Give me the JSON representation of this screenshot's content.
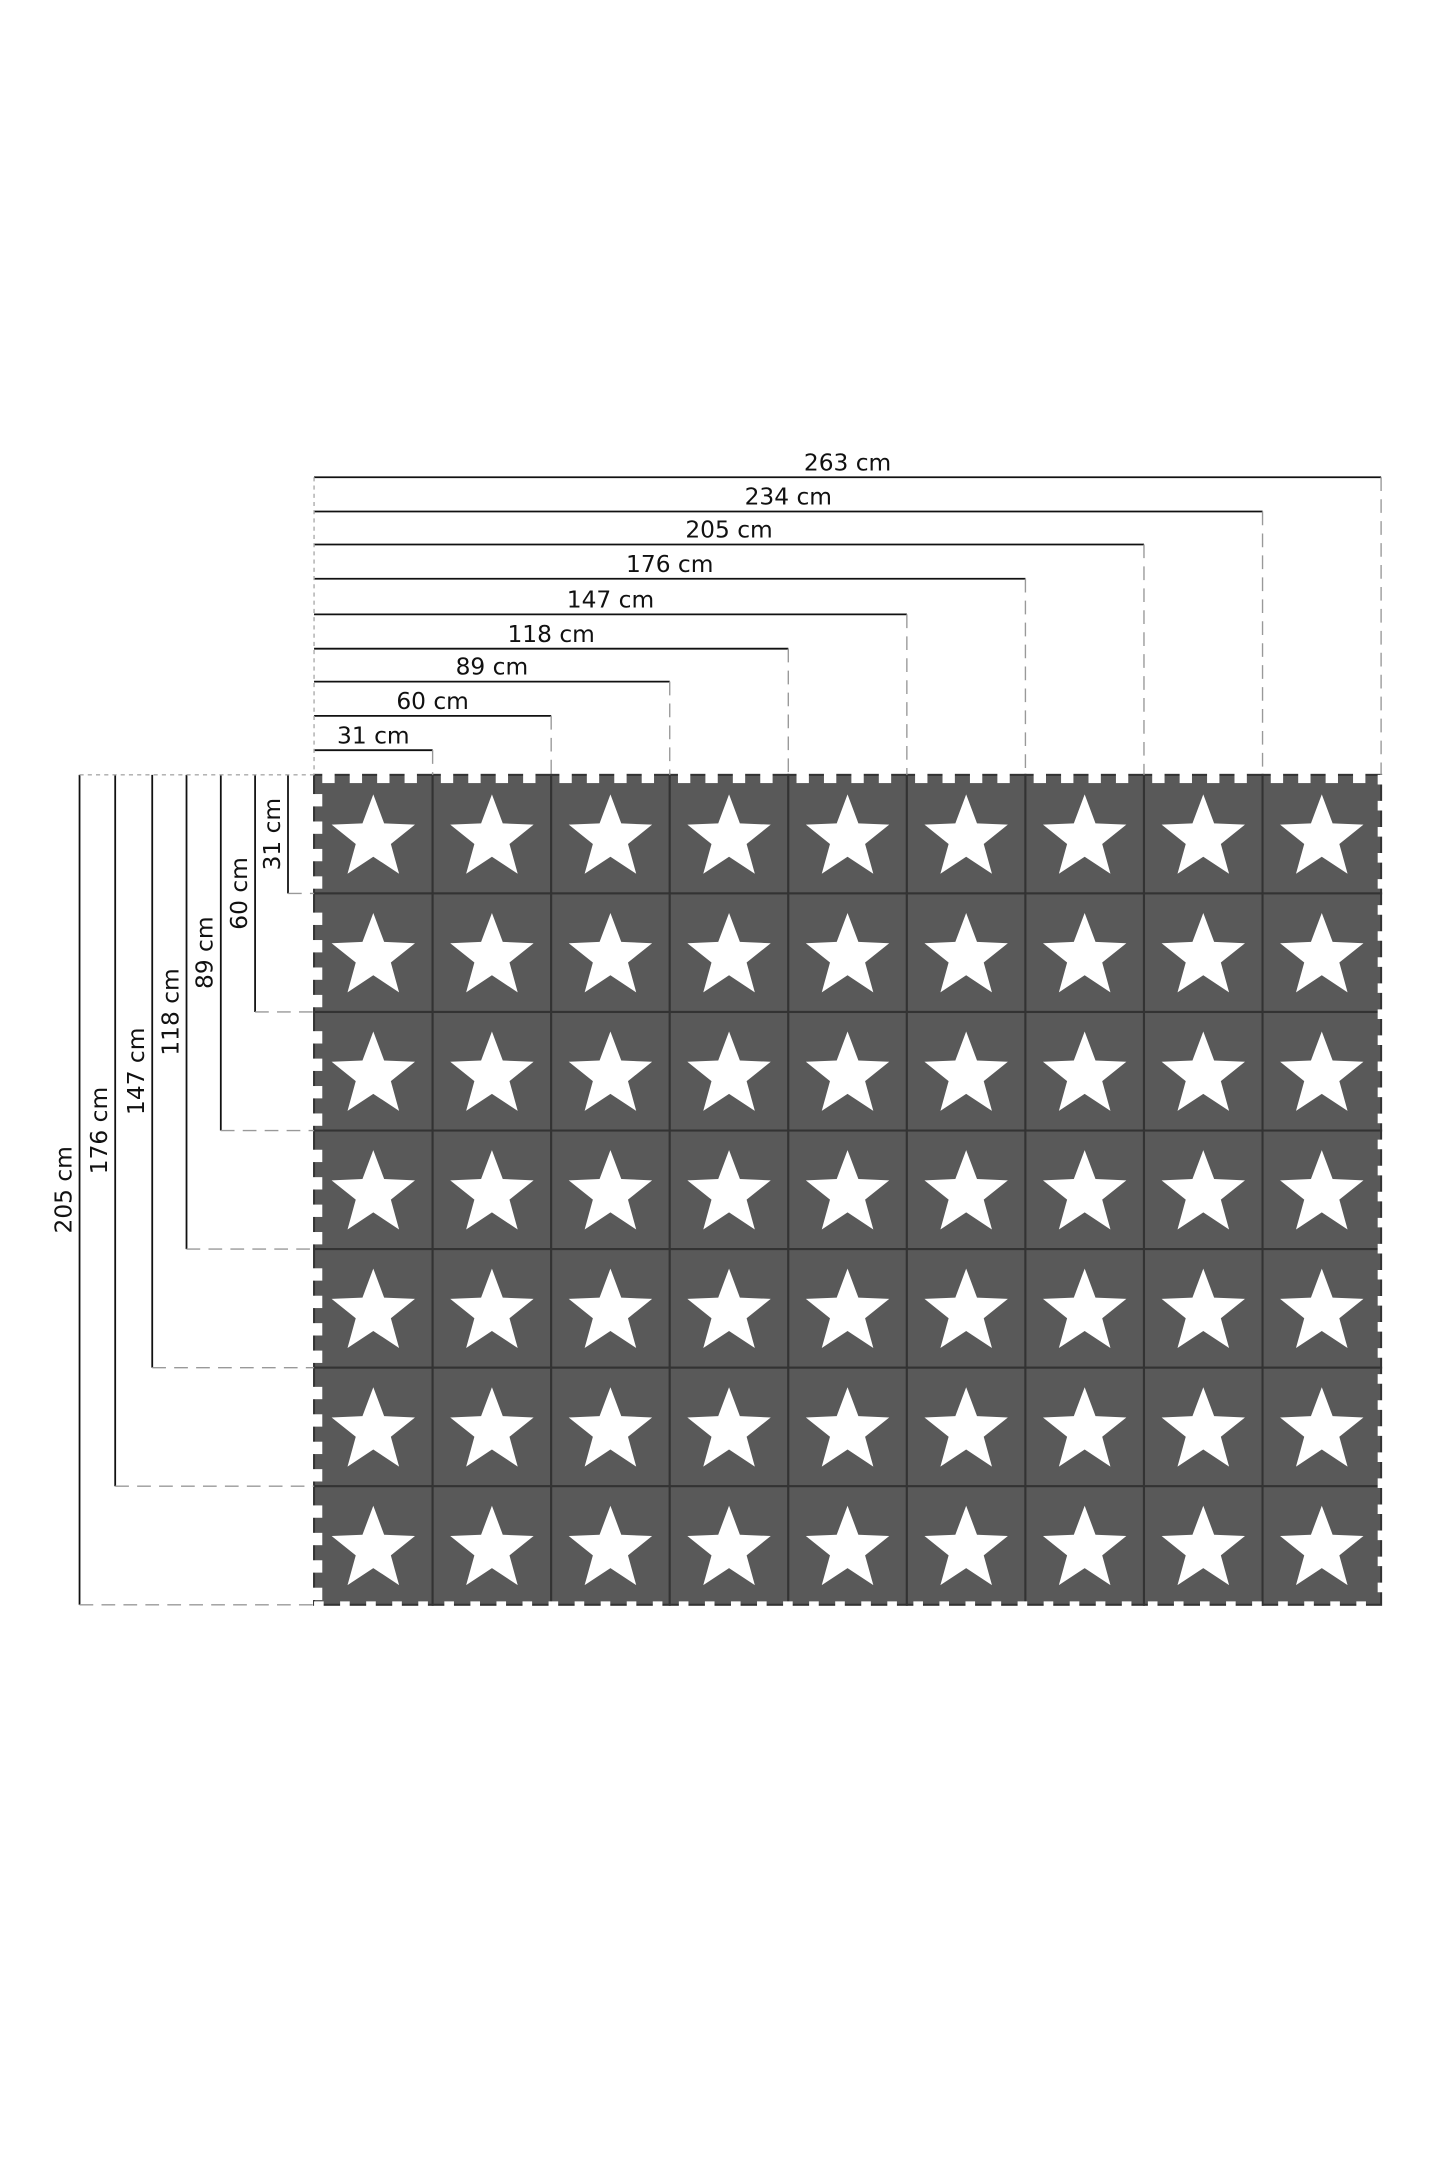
{
  "diagram": {
    "columns": 9,
    "rows": 7,
    "tile_color": "#595959",
    "seam_color": "#333333",
    "star_color": "#ffffff",
    "horizontal_dimensions": [
      "31 cm",
      "60 cm",
      "89 cm",
      "118 cm",
      "147 cm",
      "176 cm",
      "205 cm",
      "234 cm",
      "263 cm"
    ],
    "vertical_dimensions": [
      "31 cm",
      "60 cm",
      "89 cm",
      "118 cm",
      "147 cm",
      "176 cm",
      "205 cm"
    ]
  }
}
